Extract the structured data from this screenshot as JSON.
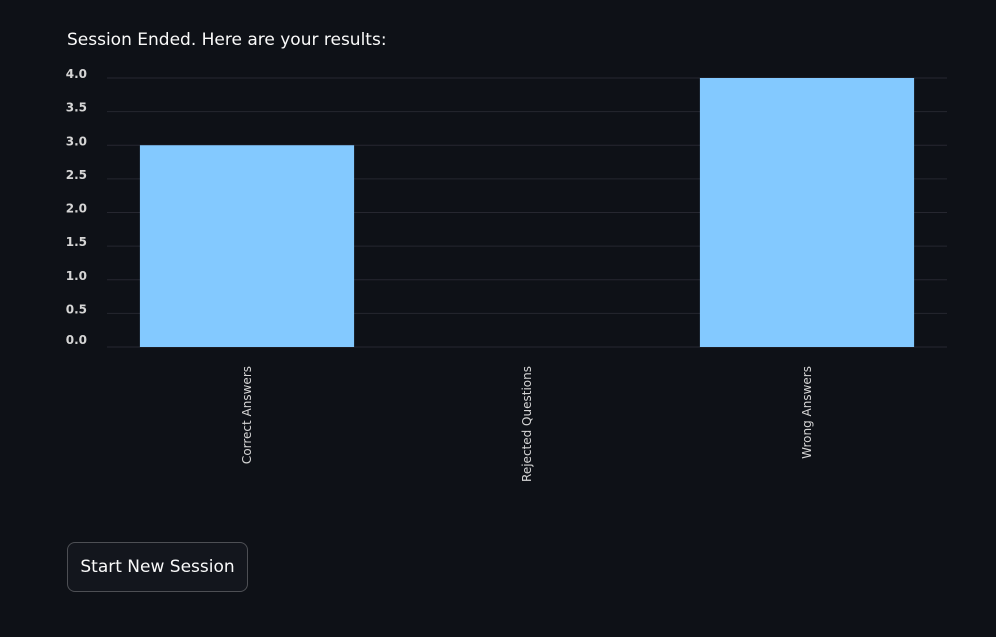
{
  "heading": "Session Ended. Here are your results:",
  "button_label": "Start New Session",
  "colors": {
    "background": "#0e1117",
    "bar": "#83c9ff",
    "grid": "#262730",
    "text": "#fafafa",
    "tick_text": "#d5d5d5"
  },
  "chart_data": {
    "type": "bar",
    "categories": [
      "Correct Answers",
      "Rejected Questions",
      "Wrong Answers"
    ],
    "values": [
      3,
      0,
      4
    ],
    "ylim": [
      0,
      4
    ],
    "yticks": [
      0.0,
      0.5,
      1.0,
      1.5,
      2.0,
      2.5,
      3.0,
      3.5,
      4.0
    ],
    "ytick_labels": [
      "0.0",
      "0.5",
      "1.0",
      "1.5",
      "2.0",
      "2.5",
      "3.0",
      "3.5",
      "4.0"
    ],
    "title": "",
    "xlabel": "",
    "ylabel": "",
    "grid": true,
    "legend": "none",
    "xtick_rotation": "vertical"
  }
}
